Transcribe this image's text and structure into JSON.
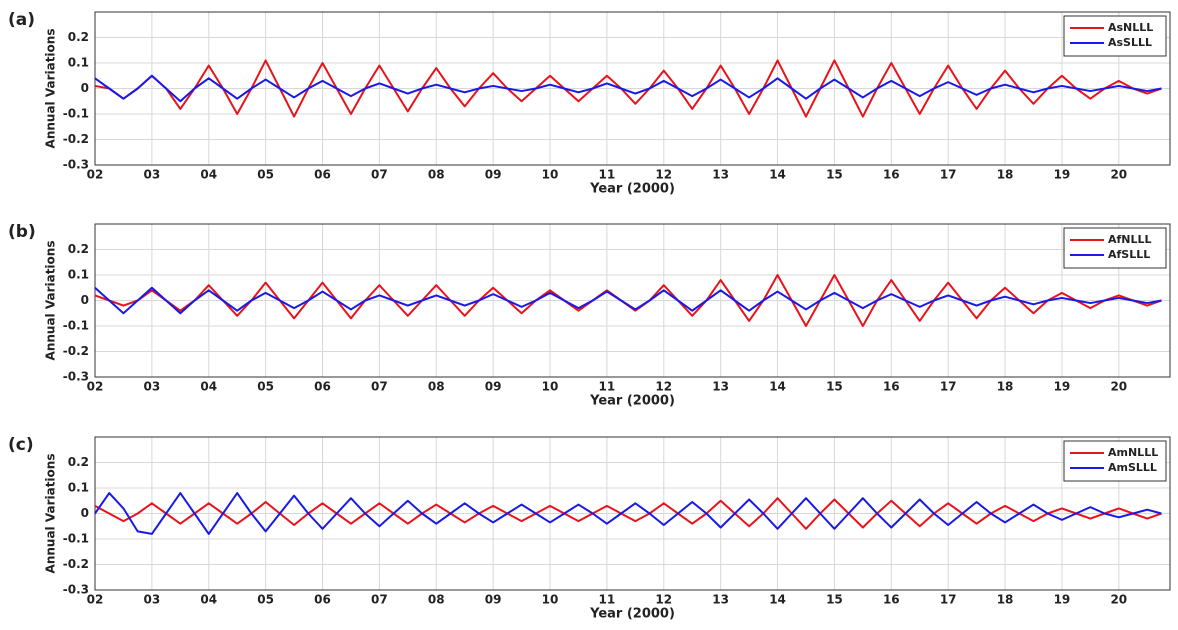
{
  "chart_data": [
    {
      "type": "line",
      "panel_label": "(a)",
      "xlabel": "Year (2000)",
      "ylabel": "Annual Variations",
      "grid": true,
      "legend": "upper right",
      "xlim": [
        2,
        20.9
      ],
      "ylim": [
        -0.3,
        0.3
      ],
      "xticks": [
        {
          "value": 2,
          "label": "02"
        },
        {
          "value": 3,
          "label": "03"
        },
        {
          "value": 4,
          "label": "04"
        },
        {
          "value": 5,
          "label": "05"
        },
        {
          "value": 6,
          "label": "06"
        },
        {
          "value": 7,
          "label": "07"
        },
        {
          "value": 8,
          "label": "08"
        },
        {
          "value": 9,
          "label": "09"
        },
        10,
        11,
        12,
        13,
        14,
        15,
        16,
        17,
        18,
        19,
        20
      ],
      "yticks": [
        -0.3,
        -0.2,
        -0.1,
        0,
        0.1,
        0.2
      ],
      "x": [
        2,
        2.25,
        2.5,
        2.75,
        3,
        3.25,
        3.5,
        3.75,
        4,
        4.25,
        4.5,
        4.75,
        5,
        5.25,
        5.5,
        5.75,
        6,
        6.25,
        6.5,
        6.75,
        7,
        7.25,
        7.5,
        7.75,
        8,
        8.25,
        8.5,
        8.75,
        9,
        9.25,
        9.5,
        9.75,
        10,
        10.25,
        10.5,
        10.75,
        11,
        11.25,
        11.5,
        11.75,
        12,
        12.25,
        12.5,
        12.75,
        13,
        13.25,
        13.5,
        13.75,
        14,
        14.25,
        14.5,
        14.75,
        15,
        15.25,
        15.5,
        15.75,
        16,
        16.25,
        16.5,
        16.75,
        17,
        17.25,
        17.5,
        17.75,
        18,
        18.25,
        18.5,
        18.75,
        19,
        19.25,
        19.5,
        19.75,
        20,
        20.25,
        20.5,
        20.75
      ],
      "series": [
        {
          "name": "AsNLLL",
          "color": "#e8141c",
          "values": [
            0.01,
            0,
            -0.04,
            0,
            0.05,
            0,
            -0.08,
            0,
            0.09,
            0,
            -0.1,
            0,
            0.11,
            0,
            -0.11,
            0,
            0.1,
            0,
            -0.1,
            0,
            0.09,
            0,
            -0.09,
            0,
            0.08,
            0,
            -0.07,
            0,
            0.06,
            0,
            -0.05,
            0,
            0.05,
            0,
            -0.05,
            0,
            0.05,
            0,
            -0.06,
            0,
            0.07,
            0,
            -0.08,
            0,
            0.09,
            0,
            -0.1,
            0,
            0.11,
            0,
            -0.11,
            0,
            0.11,
            0,
            -0.11,
            0,
            0.1,
            0,
            -0.1,
            0,
            0.09,
            0,
            -0.08,
            0,
            0.07,
            0,
            -0.06,
            0,
            0.05,
            0,
            -0.04,
            0,
            0.03,
            0,
            -0.02,
            0
          ]
        },
        {
          "name": "AsSLLL",
          "color": "#1a1ae6",
          "values": [
            0.04,
            0,
            -0.04,
            0,
            0.05,
            0,
            -0.05,
            0,
            0.04,
            0,
            -0.04,
            0,
            0.035,
            0,
            -0.035,
            0,
            0.03,
            0,
            -0.03,
            0,
            0.02,
            0,
            -0.02,
            0,
            0.015,
            0,
            -0.015,
            0,
            0.01,
            0,
            -0.01,
            0,
            0.015,
            0,
            -0.015,
            0,
            0.02,
            0,
            -0.02,
            0,
            0.03,
            0,
            -0.03,
            0,
            0.035,
            0,
            -0.035,
            0,
            0.04,
            0,
            -0.04,
            0,
            0.035,
            0,
            -0.035,
            0,
            0.03,
            0,
            -0.03,
            0,
            0.025,
            0,
            -0.025,
            0,
            0.015,
            0,
            -0.015,
            0,
            0.01,
            0,
            -0.01,
            0,
            0.01,
            0,
            -0.01,
            0
          ]
        }
      ]
    },
    {
      "type": "line",
      "panel_label": "(b)",
      "xlabel": "Year (2000)",
      "ylabel": "Annual Variations",
      "grid": true,
      "legend": "upper right",
      "xlim": [
        2,
        20.9
      ],
      "ylim": [
        -0.3,
        0.3
      ],
      "xticks": [
        {
          "value": 2,
          "label": "02"
        },
        {
          "value": 3,
          "label": "03"
        },
        {
          "value": 4,
          "label": "04"
        },
        {
          "value": 5,
          "label": "05"
        },
        {
          "value": 6,
          "label": "06"
        },
        {
          "value": 7,
          "label": "07"
        },
        {
          "value": 8,
          "label": "08"
        },
        {
          "value": 9,
          "label": "09"
        },
        10,
        11,
        12,
        13,
        14,
        15,
        16,
        17,
        18,
        19,
        20
      ],
      "yticks": [
        -0.3,
        -0.2,
        -0.1,
        0,
        0.1,
        0.2
      ],
      "x": [
        2,
        2.25,
        2.5,
        2.75,
        3,
        3.25,
        3.5,
        3.75,
        4,
        4.25,
        4.5,
        4.75,
        5,
        5.25,
        5.5,
        5.75,
        6,
        6.25,
        6.5,
        6.75,
        7,
        7.25,
        7.5,
        7.75,
        8,
        8.25,
        8.5,
        8.75,
        9,
        9.25,
        9.5,
        9.75,
        10,
        10.25,
        10.5,
        10.75,
        11,
        11.25,
        11.5,
        11.75,
        12,
        12.25,
        12.5,
        12.75,
        13,
        13.25,
        13.5,
        13.75,
        14,
        14.25,
        14.5,
        14.75,
        15,
        15.25,
        15.5,
        15.75,
        16,
        16.25,
        16.5,
        16.75,
        17,
        17.25,
        17.5,
        17.75,
        18,
        18.25,
        18.5,
        18.75,
        19,
        19.25,
        19.5,
        19.75,
        20,
        20.25,
        20.5,
        20.75
      ],
      "series": [
        {
          "name": "AfNLLL",
          "color": "#e8141c",
          "values": [
            0.02,
            0,
            -0.02,
            0,
            0.04,
            0,
            -0.04,
            0,
            0.06,
            0,
            -0.06,
            0,
            0.07,
            0,
            -0.07,
            0,
            0.07,
            0,
            -0.07,
            0,
            0.06,
            0,
            -0.06,
            0,
            0.06,
            0,
            -0.06,
            0,
            0.05,
            0,
            -0.05,
            0,
            0.04,
            0,
            -0.04,
            0,
            0.04,
            0,
            -0.04,
            0,
            0.06,
            0,
            -0.06,
            0,
            0.08,
            0,
            -0.08,
            0,
            0.1,
            0,
            -0.1,
            0,
            0.1,
            0,
            -0.1,
            0,
            0.08,
            0,
            -0.08,
            0,
            0.07,
            0,
            -0.07,
            0,
            0.05,
            0,
            -0.05,
            0,
            0.03,
            0,
            -0.03,
            0,
            0.02,
            0,
            -0.02,
            0
          ]
        },
        {
          "name": "AfSLLL",
          "color": "#1a1ae6",
          "values": [
            0.05,
            0,
            -0.05,
            0,
            0.05,
            0,
            -0.05,
            0,
            0.04,
            0,
            -0.04,
            0,
            0.03,
            0,
            -0.03,
            0,
            0.035,
            0,
            -0.035,
            0,
            0.02,
            0,
            -0.02,
            0,
            0.02,
            0,
            -0.02,
            0,
            0.025,
            0,
            -0.025,
            0,
            0.03,
            0,
            -0.03,
            0,
            0.035,
            0,
            -0.035,
            0,
            0.04,
            0,
            -0.04,
            0,
            0.04,
            0,
            -0.04,
            0,
            0.035,
            0,
            -0.035,
            0,
            0.03,
            0,
            -0.03,
            0,
            0.025,
            0,
            -0.025,
            0,
            0.02,
            0,
            -0.02,
            0,
            0.015,
            0,
            -0.015,
            0,
            0.01,
            0,
            -0.01,
            0,
            0.01,
            0,
            -0.01,
            0
          ]
        }
      ]
    },
    {
      "type": "line",
      "panel_label": "(c)",
      "xlabel": "Year (2000)",
      "ylabel": "Annual Variations",
      "grid": true,
      "legend": "upper right",
      "xlim": [
        2,
        20.9
      ],
      "ylim": [
        -0.3,
        0.3
      ],
      "xticks": [
        {
          "value": 2,
          "label": "02"
        },
        {
          "value": 3,
          "label": "03"
        },
        {
          "value": 4,
          "label": "04"
        },
        {
          "value": 5,
          "label": "05"
        },
        {
          "value": 6,
          "label": "06"
        },
        {
          "value": 7,
          "label": "07"
        },
        {
          "value": 8,
          "label": "08"
        },
        {
          "value": 9,
          "label": "09"
        },
        10,
        11,
        12,
        13,
        14,
        15,
        16,
        17,
        18,
        19,
        20
      ],
      "yticks": [
        -0.3,
        -0.2,
        -0.1,
        0,
        0.1,
        0.2
      ],
      "x": [
        2,
        2.25,
        2.5,
        2.75,
        3,
        3.25,
        3.5,
        3.75,
        4,
        4.25,
        4.5,
        4.75,
        5,
        5.25,
        5.5,
        5.75,
        6,
        6.25,
        6.5,
        6.75,
        7,
        7.25,
        7.5,
        7.75,
        8,
        8.25,
        8.5,
        8.75,
        9,
        9.25,
        9.5,
        9.75,
        10,
        10.25,
        10.5,
        10.75,
        11,
        11.25,
        11.5,
        11.75,
        12,
        12.25,
        12.5,
        12.75,
        13,
        13.25,
        13.5,
        13.75,
        14,
        14.25,
        14.5,
        14.75,
        15,
        15.25,
        15.5,
        15.75,
        16,
        16.25,
        16.5,
        16.75,
        17,
        17.25,
        17.5,
        17.75,
        18,
        18.25,
        18.5,
        18.75,
        19,
        19.25,
        19.5,
        19.75,
        20,
        20.25,
        20.5,
        20.75
      ],
      "series": [
        {
          "name": "AmNLLL",
          "color": "#e8141c",
          "values": [
            0.03,
            0,
            -0.03,
            0,
            0.04,
            0,
            -0.04,
            0,
            0.04,
            0,
            -0.04,
            0,
            0.045,
            0,
            -0.045,
            0,
            0.04,
            0,
            -0.04,
            0,
            0.04,
            0,
            -0.04,
            0,
            0.035,
            0,
            -0.035,
            0,
            0.03,
            0,
            -0.03,
            0,
            0.03,
            0,
            -0.03,
            0,
            0.03,
            0,
            -0.03,
            0,
            0.04,
            0,
            -0.04,
            0,
            0.05,
            0,
            -0.05,
            0,
            0.06,
            0,
            -0.06,
            0,
            0.055,
            0,
            -0.055,
            0,
            0.05,
            0,
            -0.05,
            0,
            0.04,
            0,
            -0.04,
            0,
            0.03,
            0,
            -0.03,
            0,
            0.02,
            0,
            -0.02,
            0,
            0.02,
            0,
            -0.02,
            0
          ]
        },
        {
          "name": "AmSLLL",
          "color": "#1a1ae6",
          "values": [
            0,
            0.08,
            0.02,
            -0.07,
            -0.08,
            0,
            0.08,
            0,
            -0.08,
            0,
            0.08,
            0,
            -0.07,
            0,
            0.07,
            0,
            -0.06,
            0,
            0.06,
            0,
            -0.05,
            0,
            0.05,
            0,
            -0.04,
            0,
            0.04,
            0,
            -0.035,
            0,
            0.035,
            0,
            -0.035,
            0,
            0.035,
            0,
            -0.04,
            0,
            0.04,
            0,
            -0.045,
            0,
            0.045,
            0,
            -0.055,
            0,
            0.055,
            0,
            -0.06,
            0,
            0.06,
            0,
            -0.06,
            0,
            0.06,
            0,
            -0.055,
            0,
            0.055,
            0,
            -0.045,
            0,
            0.045,
            0,
            -0.035,
            0,
            0.035,
            0,
            -0.025,
            0,
            0.025,
            0,
            -0.015,
            0,
            0.015,
            0
          ]
        }
      ]
    }
  ]
}
